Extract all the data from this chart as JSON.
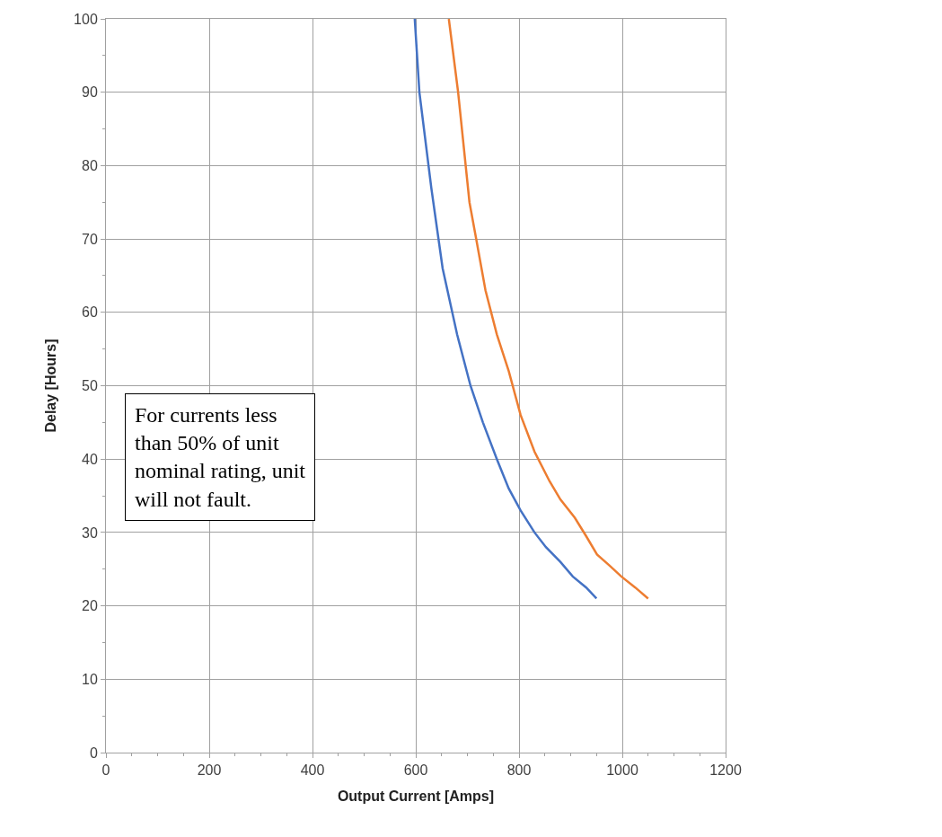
{
  "chart_data": {
    "type": "line",
    "xlabel": "Output Current [Amps]",
    "ylabel": "Delay [Hours]",
    "series": [
      {
        "color": "#4472c4",
        "x": [
          598,
          607,
          630,
          652,
          680,
          706,
          730,
          757,
          780,
          803,
          830,
          852,
          880,
          904,
          930,
          950
        ],
        "values": [
          100,
          90,
          77,
          66,
          57,
          50,
          45,
          40,
          36,
          33,
          30,
          28,
          26,
          24,
          22.5,
          21
        ]
      },
      {
        "color": "#ed7d31",
        "x": [
          664,
          682,
          704,
          717,
          735,
          757,
          780,
          803,
          830,
          859,
          880,
          908,
          930,
          951,
          975,
          998,
          1025,
          1050
        ],
        "values": [
          100,
          90,
          75,
          70,
          63,
          57,
          52,
          46,
          41,
          37,
          34.5,
          32,
          29.5,
          27,
          25.5,
          24,
          22.5,
          21
        ]
      }
    ],
    "xlim": [
      0,
      1200
    ],
    "xticks": [
      0,
      200,
      400,
      600,
      800,
      1000,
      1200
    ],
    "ylim": [
      0,
      100
    ],
    "yticks": [
      0,
      10,
      20,
      30,
      40,
      50,
      60,
      70,
      80,
      90,
      100
    ],
    "grid": true,
    "marker": "none",
    "line_style": "solid",
    "annotations": [
      "For currents less than 50% of unit nominal rating, unit will not fault."
    ]
  }
}
